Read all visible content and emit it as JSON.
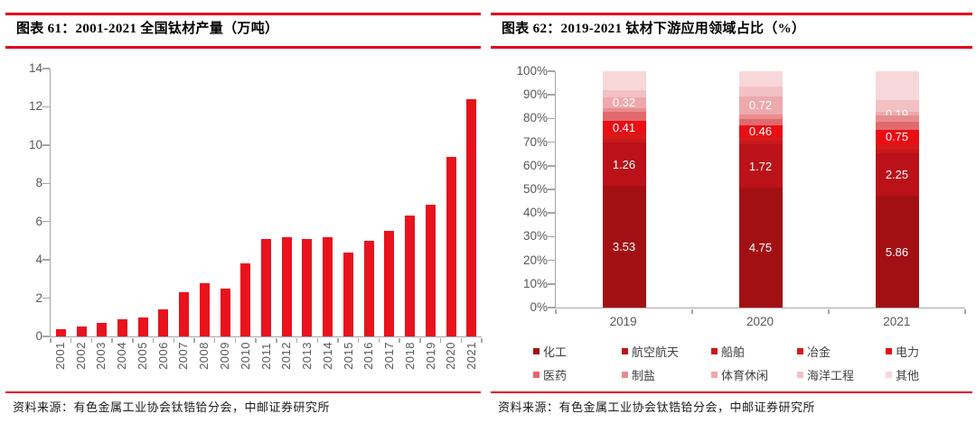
{
  "accent_color": "#E2001A",
  "axis_color": "#A6A6A6",
  "axis_text_color": "#595959",
  "figure_left": {
    "title": "图表 61：2001-2021 全国钛材产量（万吨）",
    "source": "资料来源：有色金属工业协会钛锆铪分会，中邮证券研究所"
  },
  "figure_right": {
    "title": "图表 62：2019-2021 钛材下游应用领域占比（%）",
    "source": "资料来源：有色金属工业协会钛锆铪分会，中邮证券研究所"
  },
  "chart_data": [
    {
      "type": "bar",
      "title": "图表 61：2001-2021 全国钛材产量（万吨）",
      "xlabel": "",
      "ylabel": "万吨",
      "categories": [
        "2001",
        "2002",
        "2003",
        "2004",
        "2005",
        "2006",
        "2007",
        "2008",
        "2009",
        "2010",
        "2011",
        "2012",
        "2013",
        "2014",
        "2015",
        "2016",
        "2017",
        "2018",
        "2019",
        "2020",
        "2021"
      ],
      "values": [
        0.4,
        0.5,
        0.7,
        0.9,
        1.0,
        1.4,
        2.3,
        2.8,
        2.5,
        3.8,
        5.1,
        5.2,
        5.1,
        5.2,
        4.4,
        5.0,
        5.5,
        6.3,
        6.9,
        9.4,
        12.4
      ],
      "ylim": [
        0,
        14
      ],
      "yticks": [
        0,
        2,
        4,
        6,
        8,
        10,
        12,
        14
      ],
      "grid": false,
      "legend_position": "none",
      "bar_color": "#E8131D"
    },
    {
      "type": "stacked_bar_100",
      "title": "图表 62：2019-2021 钛材下游应用领域占比（%）",
      "xlabel": "",
      "ylabel": "%",
      "unit": "万吨",
      "categories": [
        "2019",
        "2020",
        "2021"
      ],
      "series": [
        {
          "key": "chemical",
          "name": "化工",
          "color": "#A31014",
          "values": [
            3.53,
            4.75,
            5.86
          ],
          "labeled": true
        },
        {
          "key": "aerospace",
          "name": "航空航天",
          "color": "#BB1118",
          "values": [
            1.26,
            1.72,
            2.25
          ],
          "labeled": true
        },
        {
          "key": "ship",
          "name": "船舶",
          "color": "#C9181C",
          "values": [
            0.12,
            0.15,
            0.22
          ],
          "labeled": false
        },
        {
          "key": "metallurgy",
          "name": "冶金",
          "color": "#D61A1A",
          "values": [
            0.11,
            0.16,
            0.25
          ],
          "labeled": false
        },
        {
          "key": "power",
          "name": "电力",
          "color": "#E80E14",
          "values": [
            0.41,
            0.46,
            0.75
          ],
          "labeled": true
        },
        {
          "key": "medicine",
          "name": "医药",
          "color": "#E16A6D",
          "values": [
            0.25,
            0.23,
            0.4
          ],
          "labeled": false
        },
        {
          "key": "salt-making",
          "name": "制盐",
          "color": "#E98C8E",
          "values": [
            0.11,
            0.2,
            0.35
          ],
          "labeled": false
        },
        {
          "key": "sports-leisure",
          "name": "体育休闲",
          "color": "#EEA9AB",
          "values": [
            0.32,
            0.72,
            0.19
          ],
          "labeled": true
        },
        {
          "key": "marine-engineering",
          "name": "海洋工程",
          "color": "#F3C1C3",
          "values": [
            0.21,
            0.37,
            0.6
          ],
          "labeled": false
        },
        {
          "key": "other",
          "name": "其他",
          "color": "#F7D7D9",
          "values": [
            0.54,
            0.62,
            1.53
          ],
          "labeled": false
        }
      ],
      "visible_data_labels": {
        "2019": {
          "化工": "3.53",
          "航空航天": "1.26",
          "电力": "0.41",
          "体育休闲": "0.32"
        },
        "2020": {
          "化工": "4.75",
          "航空航天": "1.72",
          "电力": "0.46",
          "体育休闲": "0.72"
        },
        "2021": {
          "化工": "5.86",
          "航空航天": "2.25",
          "电力": "0.75",
          "体育休闲": "0.19"
        }
      },
      "ylim": [
        0,
        100
      ],
      "yticks": [
        "0%",
        "10%",
        "20%",
        "30%",
        "40%",
        "50%",
        "60%",
        "70%",
        "80%",
        "90%",
        "100%"
      ],
      "grid": false,
      "legend_position": "bottom"
    }
  ]
}
